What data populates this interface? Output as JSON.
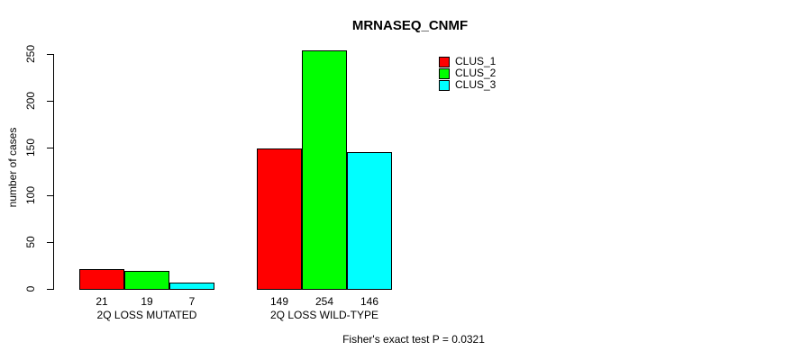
{
  "chart_data": {
    "type": "bar",
    "title": "MRNASEQ_CNMF",
    "xlabel": "",
    "ylabel": "number of cases",
    "categories": [
      "2Q LOSS MUTATED",
      "2Q LOSS WILD-TYPE"
    ],
    "series": [
      {
        "name": "CLUS_1",
        "color": "#ff0000",
        "values": [
          21,
          149
        ]
      },
      {
        "name": "CLUS_2",
        "color": "#00ff00",
        "values": [
          19,
          254
        ]
      },
      {
        "name": "CLUS_3",
        "color": "#00ffff",
        "values": [
          7,
          146
        ]
      }
    ],
    "ylim": [
      0,
      250
    ],
    "yticks": [
      0,
      50,
      100,
      150,
      200,
      250
    ],
    "grid": false,
    "legend_position": "top-right",
    "bar_value_labels": true,
    "annotation": "Fisher's exact test P = 0.0321"
  }
}
